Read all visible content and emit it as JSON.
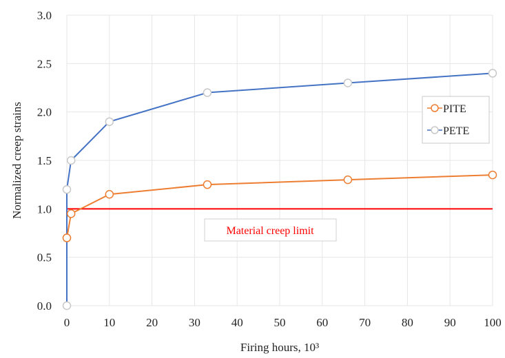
{
  "chart_data": {
    "type": "line",
    "xlabel": "Firing hours, 10³",
    "ylabel": "Normalized creep strains",
    "xlim": [
      0,
      100
    ],
    "ylim": [
      0,
      3
    ],
    "x_ticks": [
      0,
      10,
      20,
      30,
      40,
      50,
      60,
      70,
      80,
      90,
      100
    ],
    "y_ticks": [
      "0.0",
      "0.5",
      "1.0",
      "1.5",
      "2.0",
      "2.5",
      "3.0"
    ],
    "grid": "on",
    "legend_position": "right",
    "series": [
      {
        "name": "PITE",
        "color": "#ed7d31",
        "x": [
          0,
          1,
          10,
          33,
          66,
          100
        ],
        "y": [
          0.7,
          0.95,
          1.15,
          1.25,
          1.3,
          1.35
        ]
      },
      {
        "name": "PETE",
        "color": "#4472c4",
        "x": [
          0,
          0,
          0,
          1,
          10,
          33,
          66,
          100
        ],
        "y": [
          0.0,
          0.7,
          1.2,
          1.5,
          1.9,
          2.2,
          2.3,
          2.4
        ]
      }
    ],
    "reference_line": {
      "y": 1.0,
      "color": "#ff0000",
      "label": "Material creep limit"
    }
  }
}
